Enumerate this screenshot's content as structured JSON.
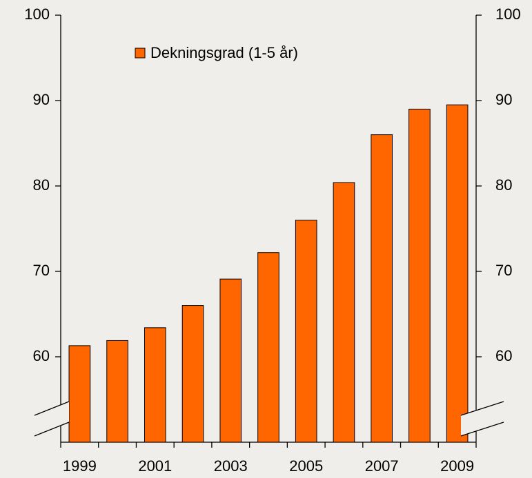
{
  "chart_data": {
    "type": "bar",
    "categories": [
      "1999",
      null,
      "2001",
      null,
      "2003",
      null,
      "2005",
      null,
      "2007",
      null,
      "2009"
    ],
    "series": [
      {
        "name": "Dekningsgrad (1-5 år)",
        "color": "#ff6600",
        "values": [
          61.3,
          61.9,
          63.4,
          66.0,
          69.1,
          72.2,
          76.0,
          80.4,
          86.0,
          89.0,
          89.5
        ]
      }
    ],
    "ylim": [
      50,
      100
    ],
    "yticks": [
      60,
      70,
      80,
      90,
      100
    ],
    "y2lim": [
      50,
      100
    ],
    "y2ticks": [
      60,
      70,
      80,
      90,
      100
    ],
    "grid": false,
    "legend": "top-left"
  }
}
